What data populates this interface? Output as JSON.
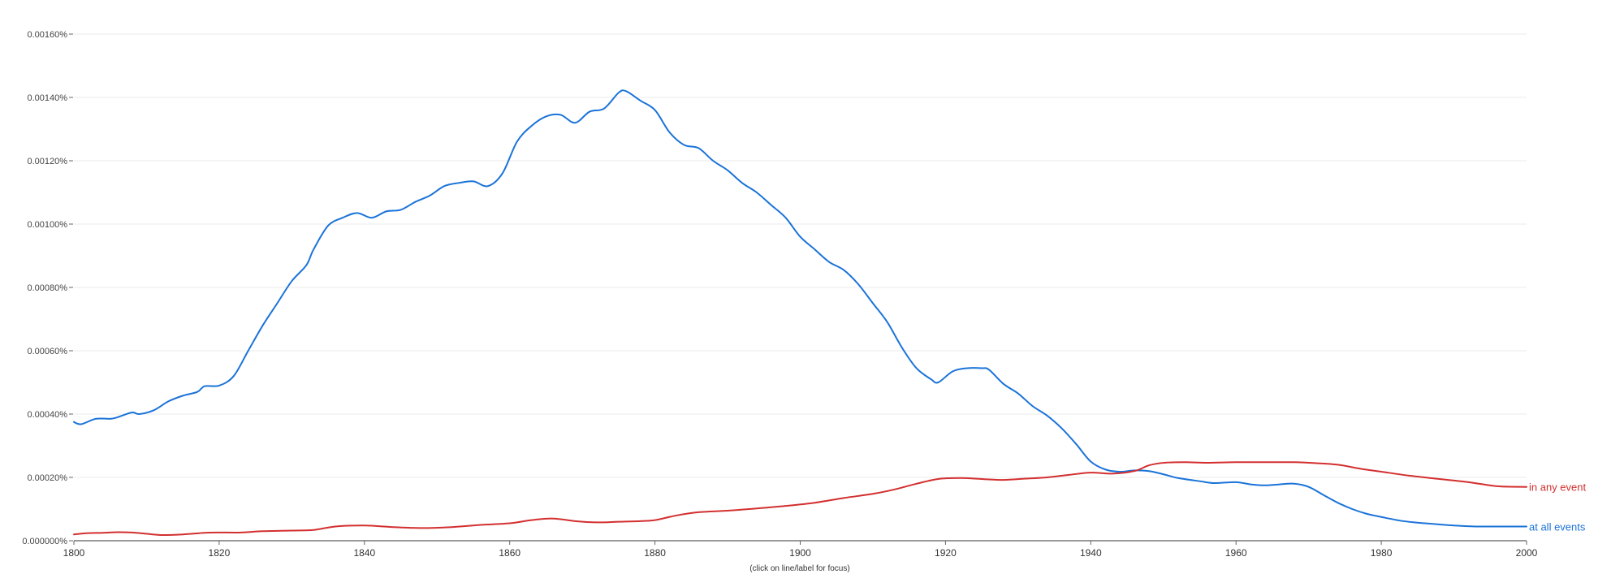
{
  "chart_data": {
    "type": "line",
    "title": "",
    "xlabel": "",
    "ylabel": "",
    "xlim": [
      1800,
      2000
    ],
    "ylim": [
      0,
      0.0016
    ],
    "grid": true,
    "legend": "inline labels at right end of lines",
    "x_ticks": [
      "1800",
      "1820",
      "1840",
      "1860",
      "1880",
      "1900",
      "1920",
      "1940",
      "1960",
      "1980",
      "2000"
    ],
    "y_ticks": [
      "0.000000%",
      "0.00020%",
      "0.00040%",
      "0.00060%",
      "0.00080%",
      "0.00100%",
      "0.00120%",
      "0.00140%",
      "0.00160%"
    ],
    "footnote": "(click on line/label for focus)",
    "series": [
      {
        "name": "at all events",
        "color": "#1a73d9",
        "points": [
          [
            1800,
            0.000375
          ],
          [
            1801,
            0.000368
          ],
          [
            1803,
            0.000385
          ],
          [
            1805,
            0.000385
          ],
          [
            1806,
            0.00039
          ],
          [
            1808,
            0.000405
          ],
          [
            1809,
            0.0004
          ],
          [
            1811,
            0.000412
          ],
          [
            1813,
            0.00044
          ],
          [
            1815,
            0.000458
          ],
          [
            1817,
            0.00047
          ],
          [
            1818,
            0.000488
          ],
          [
            1820,
            0.00049
          ],
          [
            1822,
            0.00052
          ],
          [
            1824,
            0.0006
          ],
          [
            1826,
            0.00068
          ],
          [
            1828,
            0.00075
          ],
          [
            1830,
            0.00082
          ],
          [
            1832,
            0.00087
          ],
          [
            1833,
            0.00092
          ],
          [
            1835,
            0.000995
          ],
          [
            1837,
            0.00102
          ],
          [
            1839,
            0.001035
          ],
          [
            1841,
            0.00102
          ],
          [
            1843,
            0.00104
          ],
          [
            1845,
            0.001045
          ],
          [
            1847,
            0.00107
          ],
          [
            1849,
            0.00109
          ],
          [
            1851,
            0.00112
          ],
          [
            1853,
            0.00113
          ],
          [
            1855,
            0.001135
          ],
          [
            1857,
            0.00112
          ],
          [
            1859,
            0.00116
          ],
          [
            1861,
            0.00126
          ],
          [
            1863,
            0.00131
          ],
          [
            1865,
            0.00134
          ],
          [
            1867,
            0.001345
          ],
          [
            1869,
            0.00132
          ],
          [
            1871,
            0.001355
          ],
          [
            1873,
            0.001365
          ],
          [
            1875,
            0.001415
          ],
          [
            1876,
            0.00142
          ],
          [
            1878,
            0.00139
          ],
          [
            1880,
            0.00136
          ],
          [
            1882,
            0.00129
          ],
          [
            1884,
            0.00125
          ],
          [
            1886,
            0.00124
          ],
          [
            1888,
            0.0012
          ],
          [
            1890,
            0.00117
          ],
          [
            1892,
            0.00113
          ],
          [
            1894,
            0.0011
          ],
          [
            1896,
            0.00106
          ],
          [
            1898,
            0.00102
          ],
          [
            1900,
            0.00096
          ],
          [
            1902,
            0.00092
          ],
          [
            1904,
            0.00088
          ],
          [
            1906,
            0.000855
          ],
          [
            1908,
            0.00081
          ],
          [
            1910,
            0.00075
          ],
          [
            1912,
            0.00069
          ],
          [
            1914,
            0.00061
          ],
          [
            1916,
            0.000545
          ],
          [
            1918,
            0.00051
          ],
          [
            1919,
            0.0005
          ],
          [
            1921,
            0.000535
          ],
          [
            1923,
            0.000545
          ],
          [
            1925,
            0.000545
          ],
          [
            1926,
            0.00054
          ],
          [
            1928,
            0.000495
          ],
          [
            1930,
            0.000465
          ],
          [
            1932,
            0.000425
          ],
          [
            1934,
            0.000395
          ],
          [
            1936,
            0.000355
          ],
          [
            1938,
            0.000305
          ],
          [
            1940,
            0.00025
          ],
          [
            1942,
            0.000225
          ],
          [
            1944,
            0.000218
          ],
          [
            1946,
            0.000222
          ],
          [
            1948,
            0.00022
          ],
          [
            1950,
            0.00021
          ],
          [
            1952,
            0.000198
          ],
          [
            1955,
            0.000188
          ],
          [
            1957,
            0.000182
          ],
          [
            1960,
            0.000185
          ],
          [
            1962,
            0.000178
          ],
          [
            1964,
            0.000175
          ],
          [
            1966,
            0.000178
          ],
          [
            1968,
            0.00018
          ],
          [
            1970,
            0.00017
          ],
          [
            1972,
            0.000145
          ],
          [
            1974,
            0.00012
          ],
          [
            1976,
            0.0001
          ],
          [
            1978,
            8.5e-05
          ],
          [
            1980,
            7.5e-05
          ],
          [
            1983,
            6.2e-05
          ],
          [
            1986,
            5.5e-05
          ],
          [
            1990,
            4.8e-05
          ],
          [
            1993,
            4.5e-05
          ],
          [
            1996,
            4.5e-05
          ],
          [
            2000,
            4.5e-05
          ]
        ]
      },
      {
        "name": "in any event",
        "color": "#d32f2f",
        "points": [
          [
            1800,
            2e-05
          ],
          [
            1802,
            2.4e-05
          ],
          [
            1804,
            2.5e-05
          ],
          [
            1806,
            2.7e-05
          ],
          [
            1808,
            2.6e-05
          ],
          [
            1810,
            2.2e-05
          ],
          [
            1812,
            1.8e-05
          ],
          [
            1815,
            2e-05
          ],
          [
            1818,
            2.5e-05
          ],
          [
            1820,
            2.6e-05
          ],
          [
            1823,
            2.6e-05
          ],
          [
            1826,
            3e-05
          ],
          [
            1830,
            3.2e-05
          ],
          [
            1833,
            3.4e-05
          ],
          [
            1836,
            4.5e-05
          ],
          [
            1840,
            4.8e-05
          ],
          [
            1844,
            4.3e-05
          ],
          [
            1848,
            4e-05
          ],
          [
            1852,
            4.3e-05
          ],
          [
            1856,
            5e-05
          ],
          [
            1860,
            5.5e-05
          ],
          [
            1863,
            6.5e-05
          ],
          [
            1866,
            7e-05
          ],
          [
            1869,
            6.2e-05
          ],
          [
            1872,
            5.8e-05
          ],
          [
            1875,
            6e-05
          ],
          [
            1878,
            6.2e-05
          ],
          [
            1880,
            6.5e-05
          ],
          [
            1883,
            8e-05
          ],
          [
            1886,
            9e-05
          ],
          [
            1890,
            9.5e-05
          ],
          [
            1894,
            0.000102
          ],
          [
            1898,
            0.00011
          ],
          [
            1902,
            0.00012
          ],
          [
            1906,
            0.000135
          ],
          [
            1910,
            0.000148
          ],
          [
            1913,
            0.000162
          ],
          [
            1916,
            0.00018
          ],
          [
            1919,
            0.000195
          ],
          [
            1922,
            0.000198
          ],
          [
            1925,
            0.000195
          ],
          [
            1928,
            0.000192
          ],
          [
            1931,
            0.000196
          ],
          [
            1934,
            0.0002
          ],
          [
            1937,
            0.000208
          ],
          [
            1940,
            0.000215
          ],
          [
            1943,
            0.000212
          ],
          [
            1946,
            0.00022
          ],
          [
            1948,
            0.000238
          ],
          [
            1950,
            0.000246
          ],
          [
            1953,
            0.000248
          ],
          [
            1956,
            0.000246
          ],
          [
            1960,
            0.000248
          ],
          [
            1964,
            0.000248
          ],
          [
            1968,
            0.000248
          ],
          [
            1971,
            0.000245
          ],
          [
            1974,
            0.00024
          ],
          [
            1977,
            0.000228
          ],
          [
            1980,
            0.000218
          ],
          [
            1984,
            0.000205
          ],
          [
            1988,
            0.000195
          ],
          [
            1992,
            0.000185
          ],
          [
            1996,
            0.000172
          ],
          [
            2000,
            0.00017
          ]
        ]
      }
    ]
  }
}
